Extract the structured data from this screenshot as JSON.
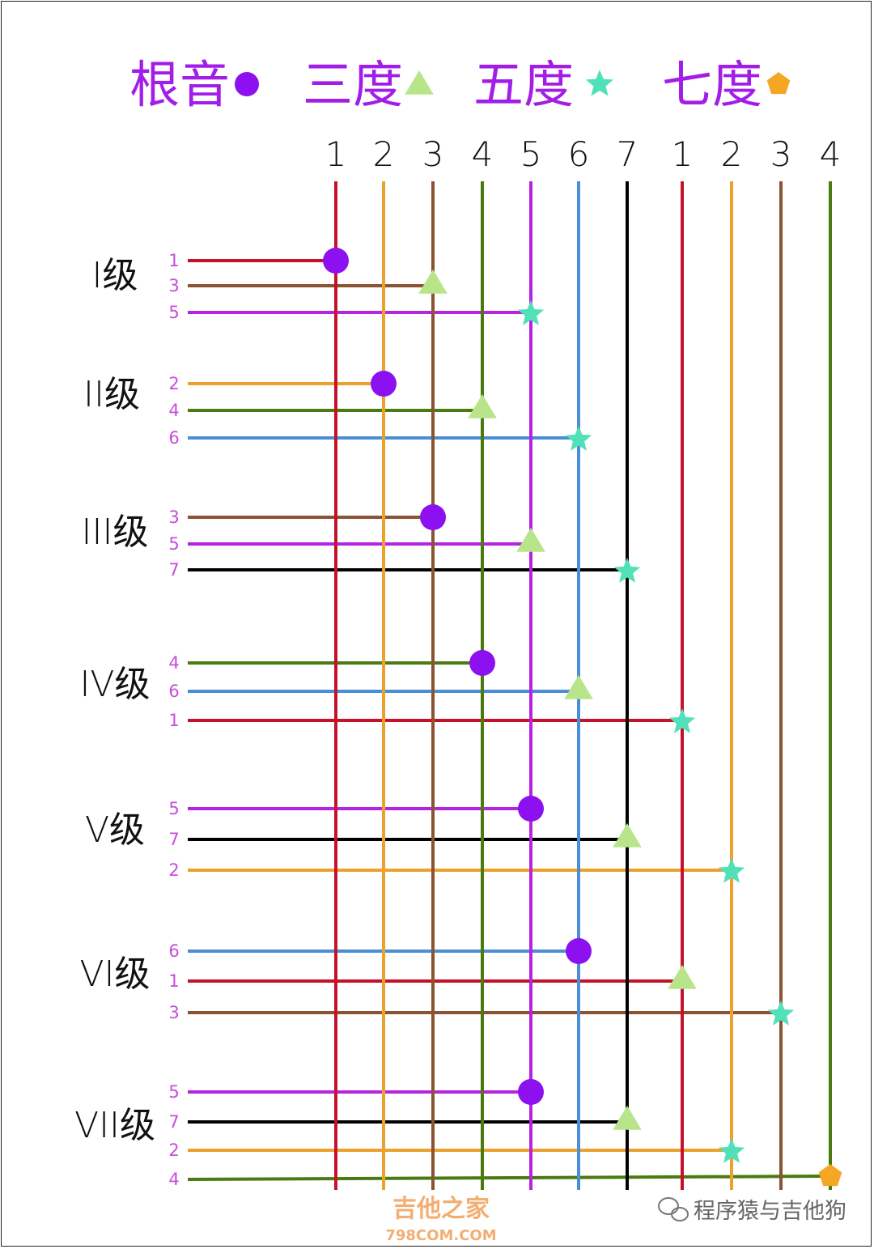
{
  "legend": [
    {
      "label": "根音",
      "shape": "circle",
      "color": "#a21ee8",
      "symbol_color": "#8c10f0"
    },
    {
      "label": "三度",
      "shape": "triangle",
      "color": "#a21ee8",
      "symbol_color": "#b8e58a"
    },
    {
      "label": "五度",
      "shape": "star",
      "color": "#a21ee8",
      "symbol_color": "#52e0b8"
    },
    {
      "label": "七度",
      "shape": "pentagon",
      "color": "#a21ee8",
      "symbol_color": "#f5a623"
    }
  ],
  "columns": [
    {
      "label": "1",
      "color": "#c4122a"
    },
    {
      "label": "2",
      "color": "#eba22c"
    },
    {
      "label": "3",
      "color": "#8a5430"
    },
    {
      "label": "4",
      "color": "#4b7a10"
    },
    {
      "label": "5",
      "color": "#b624e0"
    },
    {
      "label": "6",
      "color": "#4a8ed6"
    },
    {
      "label": "7",
      "color": "#000000"
    },
    {
      "label": "1",
      "color": "#c4122a"
    },
    {
      "label": "2",
      "color": "#eba22c"
    },
    {
      "label": "3",
      "color": "#8a5430"
    },
    {
      "label": "4",
      "color": "#4b7a10"
    }
  ],
  "degrees": [
    {
      "label": "I级",
      "notes": [
        {
          "note": "1",
          "column": 0,
          "role": "root"
        },
        {
          "note": "3",
          "column": 2,
          "role": "third"
        },
        {
          "note": "5",
          "column": 4,
          "role": "fifth"
        }
      ]
    },
    {
      "label": "II级",
      "notes": [
        {
          "note": "2",
          "column": 1,
          "role": "root"
        },
        {
          "note": "4",
          "column": 3,
          "role": "third"
        },
        {
          "note": "6",
          "column": 5,
          "role": "fifth"
        }
      ]
    },
    {
      "label": "III级",
      "notes": [
        {
          "note": "3",
          "column": 2,
          "role": "root"
        },
        {
          "note": "5",
          "column": 4,
          "role": "third"
        },
        {
          "note": "7",
          "column": 6,
          "role": "fifth"
        }
      ]
    },
    {
      "label": "IV级",
      "notes": [
        {
          "note": "4",
          "column": 3,
          "role": "root"
        },
        {
          "note": "6",
          "column": 5,
          "role": "third"
        },
        {
          "note": "1",
          "column": 7,
          "role": "fifth"
        }
      ]
    },
    {
      "label": "V级",
      "notes": [
        {
          "note": "5",
          "column": 4,
          "role": "root"
        },
        {
          "note": "7",
          "column": 6,
          "role": "third"
        },
        {
          "note": "2",
          "column": 8,
          "role": "fifth"
        }
      ]
    },
    {
      "label": "VI级",
      "notes": [
        {
          "note": "6",
          "column": 5,
          "role": "root"
        },
        {
          "note": "1",
          "column": 7,
          "role": "third"
        },
        {
          "note": "3",
          "column": 9,
          "role": "fifth"
        }
      ]
    },
    {
      "label": "VII级",
      "notes": [
        {
          "note": "5",
          "column": 4,
          "role": "root"
        },
        {
          "note": "7",
          "column": 6,
          "role": "third"
        },
        {
          "note": "2",
          "column": 8,
          "role": "fifth"
        },
        {
          "note": "4",
          "column": 10,
          "role": "seventh"
        }
      ]
    }
  ],
  "note_label_color": "#c84cdc",
  "watermark": {
    "site_name": "吉他之家",
    "site_url": "798COM.COM",
    "account": "程序猿与吉他狗"
  }
}
